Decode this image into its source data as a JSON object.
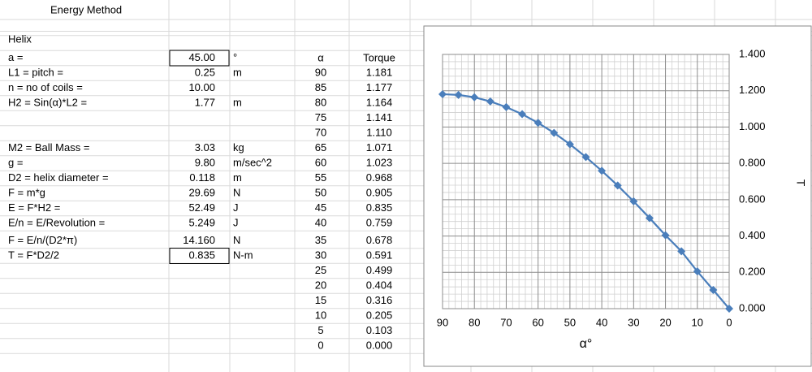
{
  "sheet": {
    "title": "Energy Method",
    "section": "Helix"
  },
  "parameters": [
    {
      "rows": [
        {
          "label": "a =",
          "value": "45.00",
          "unit": "°",
          "boxed": true
        },
        {
          "label": "L1 = pitch =",
          "value": "0.25",
          "unit": "m"
        },
        {
          "label": "n = no of coils =",
          "value": "10.00"
        },
        {
          "label": "H2 = Sin(α)*L2 =",
          "value": "1.77",
          "unit": "m"
        }
      ]
    },
    {
      "rows": [
        {
          "label": "M2 = Ball Mass =",
          "value": "3.03",
          "unit": "kg"
        },
        {
          "label": "g =",
          "value": "9.80",
          "unit": "m/sec^2"
        },
        {
          "label": "D2 = helix diameter =",
          "value": "0.118",
          "unit": "m"
        },
        {
          "label": "F = m*g",
          "value": "29.69",
          "unit": "N"
        },
        {
          "label": "E = F*H2 =",
          "value": "52.49",
          "unit": "J"
        },
        {
          "label": "E/n = E/Revolution =",
          "value": "5.249",
          "unit": "J"
        },
        {
          "label": "F = E/n/(D2*π)",
          "value": "14.160",
          "unit": "N"
        },
        {
          "label": "T = F*D2/2",
          "value": "0.835",
          "unit": "N-m",
          "boxed": true
        }
      ]
    }
  ],
  "torque_table": {
    "header": [
      "α",
      "Torque"
    ],
    "rows": [
      [
        "90",
        "1.181"
      ],
      [
        "85",
        "1.177"
      ],
      [
        "80",
        "1.164"
      ],
      [
        "75",
        "1.141"
      ],
      [
        "70",
        "1.110"
      ],
      [
        "65",
        "1.071"
      ],
      [
        "60",
        "1.023"
      ],
      [
        "55",
        "0.968"
      ],
      [
        "50",
        "0.905"
      ],
      [
        "45",
        "0.835"
      ],
      [
        "40",
        "0.759"
      ],
      [
        "35",
        "0.678"
      ],
      [
        "30",
        "0.591"
      ],
      [
        "25",
        "0.499"
      ],
      [
        "20",
        "0.404"
      ],
      [
        "15",
        "0.316"
      ],
      [
        "10",
        "0.205"
      ],
      [
        "5",
        "0.103"
      ],
      [
        "0",
        "0.000"
      ]
    ]
  },
  "chart_data": {
    "type": "line",
    "xlabel": "α°",
    "ylabel": "T",
    "x": [
      90,
      85,
      80,
      75,
      70,
      65,
      60,
      55,
      50,
      45,
      40,
      35,
      30,
      25,
      20,
      15,
      10,
      5,
      0
    ],
    "series": [
      {
        "color": "#4a7ebb",
        "values": [
          1.181,
          1.177,
          1.164,
          1.141,
          1.11,
          1.071,
          1.023,
          0.968,
          0.905,
          0.835,
          0.759,
          0.678,
          0.591,
          0.499,
          0.404,
          0.316,
          0.205,
          0.103,
          0.0
        ]
      }
    ],
    "xlim": [
      90,
      0
    ],
    "ylim": [
      0,
      1.4
    ],
    "xticks": [
      90,
      80,
      70,
      60,
      50,
      40,
      30,
      20,
      10,
      0
    ],
    "yticks": [
      {
        "value": 0,
        "label": "0.000"
      },
      {
        "value": 0.2,
        "label": "0.200"
      },
      {
        "value": 0.4,
        "label": "0.400"
      },
      {
        "value": 0.6,
        "label": "0.600"
      },
      {
        "value": 0.8,
        "label": "0.800"
      },
      {
        "value": 1.0,
        "label": "1.000"
      },
      {
        "value": 1.2,
        "label": "1.200"
      },
      {
        "value": 1.4,
        "label": "1.400"
      }
    ],
    "grid": true,
    "minor_grid": true,
    "y_axis_side": "right",
    "marker": "diamond"
  }
}
